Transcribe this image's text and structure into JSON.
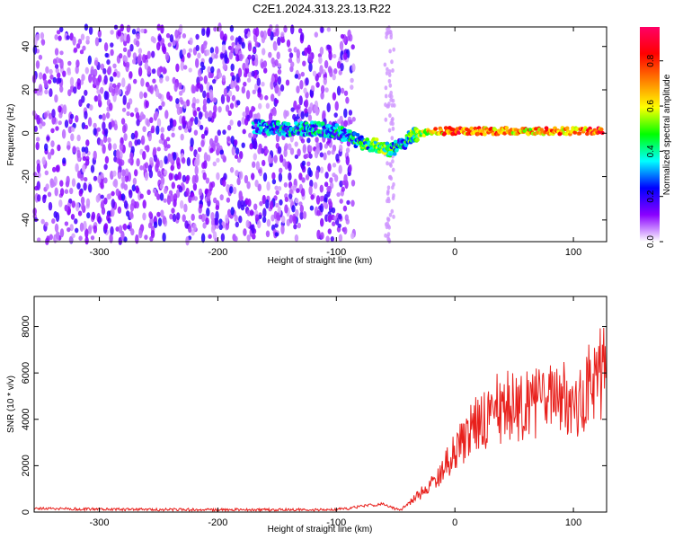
{
  "title": "C2E1.2024.313.23.13.R22",
  "chart_data": [
    {
      "type": "heatmap",
      "xlabel": "Height of straight line (km)",
      "ylabel": "Frequency (Hz)",
      "xlim": [
        -355,
        128
      ],
      "ylim": [
        -50,
        49
      ],
      "x_ticks": [
        -300,
        -200,
        -100,
        0,
        100
      ],
      "x_tick_labels": [
        "-300",
        "-200",
        "-100",
        "0",
        "100"
      ],
      "y_ticks": [
        -40,
        -20,
        0,
        20,
        40
      ],
      "y_tick_labels": [
        "-40",
        "-20",
        "0",
        "20",
        "40"
      ],
      "colorbar": {
        "label": "Normalized spectral amplitude",
        "range": [
          0,
          0.95
        ],
        "ticks": [
          0.0,
          0.2,
          0.4,
          0.6,
          0.8
        ],
        "tick_labels": [
          "0.0",
          "0.2",
          "0.4",
          "0.6",
          "0.8"
        ],
        "colors": [
          "#ffffff",
          "#8a00ff",
          "#0000ff",
          "#00ffff",
          "#00ff00",
          "#ffff00",
          "#ff8000",
          "#ff0000",
          "#ff0066"
        ]
      },
      "noise_region": {
        "x_range": [
          -355,
          -85
        ],
        "y_range": [
          -50,
          49
        ],
        "typical_amplitude": 0.15
      },
      "signal_track": [
        {
          "x": -170,
          "y": 3,
          "amplitude": 0.25
        },
        {
          "x": -140,
          "y": 2,
          "amplitude": 0.3
        },
        {
          "x": -120,
          "y": 2,
          "amplitude": 0.3
        },
        {
          "x": -100,
          "y": 1,
          "amplitude": 0.3
        },
        {
          "x": -85,
          "y": -3,
          "amplitude": 0.35
        },
        {
          "x": -75,
          "y": -5,
          "amplitude": 0.4
        },
        {
          "x": -60,
          "y": -6,
          "amplitude": 0.45
        },
        {
          "x": -55,
          "y": -8,
          "amplitude": 0.4
        },
        {
          "x": -45,
          "y": -5,
          "amplitude": 0.3
        },
        {
          "x": -35,
          "y": -1,
          "amplitude": 0.45
        },
        {
          "x": -20,
          "y": 1,
          "amplitude": 0.6
        },
        {
          "x": 0,
          "y": 1,
          "amplitude": 0.75
        },
        {
          "x": 30,
          "y": 1,
          "amplitude": 0.7
        },
        {
          "x": 60,
          "y": 1,
          "amplitude": 0.65
        },
        {
          "x": 90,
          "y": 1,
          "amplitude": 0.7
        },
        {
          "x": 125,
          "y": 1,
          "amplitude": 0.75
        }
      ]
    },
    {
      "type": "line",
      "xlabel": "Height of straight line (km)",
      "ylabel": "SNR (10 * v/v)",
      "xlim": [
        -355,
        128
      ],
      "ylim": [
        0,
        9300
      ],
      "x_ticks": [
        -300,
        -200,
        -100,
        0,
        100
      ],
      "x_tick_labels": [
        "-300",
        "-200",
        "-100",
        "0",
        "100"
      ],
      "y_ticks": [
        0,
        2000,
        4000,
        6000,
        8000
      ],
      "y_tick_labels": [
        "0",
        "2000",
        "4000",
        "6000",
        "8000"
      ],
      "series": [
        {
          "color": "#e8201c",
          "x": [
            -355,
            -300,
            -200,
            -120,
            -100,
            -90,
            -80,
            -70,
            -60,
            -55,
            -50,
            -45,
            -40,
            -35,
            -30,
            -25,
            -20,
            -15,
            -10,
            -5,
            0,
            5,
            10,
            15,
            20,
            25,
            30,
            35,
            40,
            45,
            50,
            55,
            60,
            65,
            70,
            75,
            80,
            85,
            90,
            95,
            100,
            105,
            110,
            115,
            120,
            125,
            128
          ],
          "y": [
            150,
            120,
            100,
            100,
            110,
            150,
            250,
            300,
            350,
            250,
            120,
            100,
            350,
            550,
            750,
            1000,
            1200,
            1500,
            1800,
            2200,
            2600,
            2950,
            3300,
            3650,
            3900,
            4150,
            4300,
            4450,
            4500,
            4550,
            4550,
            4600,
            4650,
            4700,
            4700,
            4750,
            4700,
            4750,
            4800,
            4800,
            4900,
            5000,
            5200,
            5500,
            5900,
            6200,
            6500
          ]
        }
      ]
    }
  ]
}
